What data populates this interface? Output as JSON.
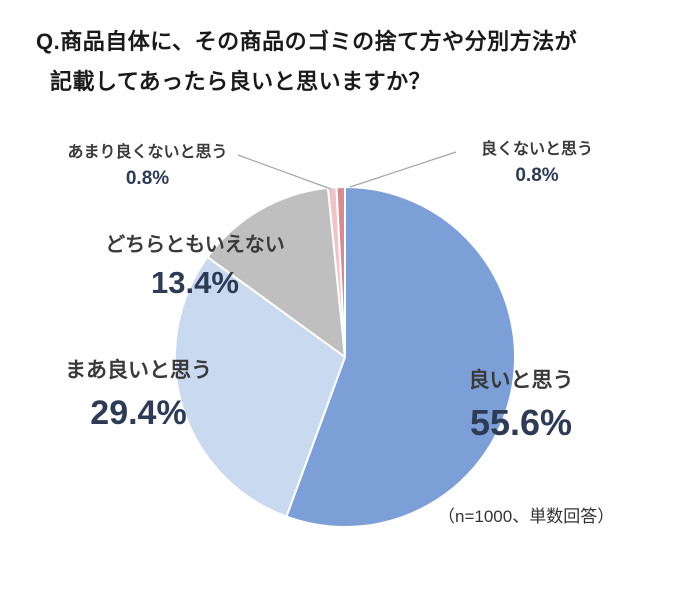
{
  "title": {
    "line1": "Q.商品自体に、その商品のゴミの捨て方や分別方法が",
    "line2": "記載してあったら良いと思いますか？"
  },
  "note": "（n=1000、単数回答）",
  "annotations": [
    {
      "label": "あまり良くないと思う",
      "value": "0.8%"
    },
    {
      "label": "良くないと思う",
      "value": "0.8%"
    },
    {
      "label": "どちらともいえない",
      "value": "13.4%"
    },
    {
      "label": "まあ良いと思う",
      "value": "29.4%"
    },
    {
      "label": "良いと思う",
      "value": "55.6%"
    }
  ],
  "chart_data": {
    "type": "pie",
    "title": "Q.商品自体に、その商品のゴミの捨て方や分別方法が記載してあったら良いと思いますか？",
    "labels": [
      "良いと思う",
      "まあ良いと思う",
      "どちらともいえない",
      "あまり良くないと思う",
      "良くないと思う"
    ],
    "values": [
      55.6,
      29.4,
      13.4,
      0.8,
      0.8
    ],
    "colors": [
      "#7C9FD8",
      "#C9D9F0",
      "#BFBFBF",
      "#EFC4C9",
      "#D98B94"
    ],
    "unit": "%",
    "note": "（n=1000、単数回答）",
    "sample_size": "n=1000",
    "start_angle_deg": 0,
    "direction": "clockwise",
    "legend": "none",
    "slice_stroke": "#ffffff"
  }
}
